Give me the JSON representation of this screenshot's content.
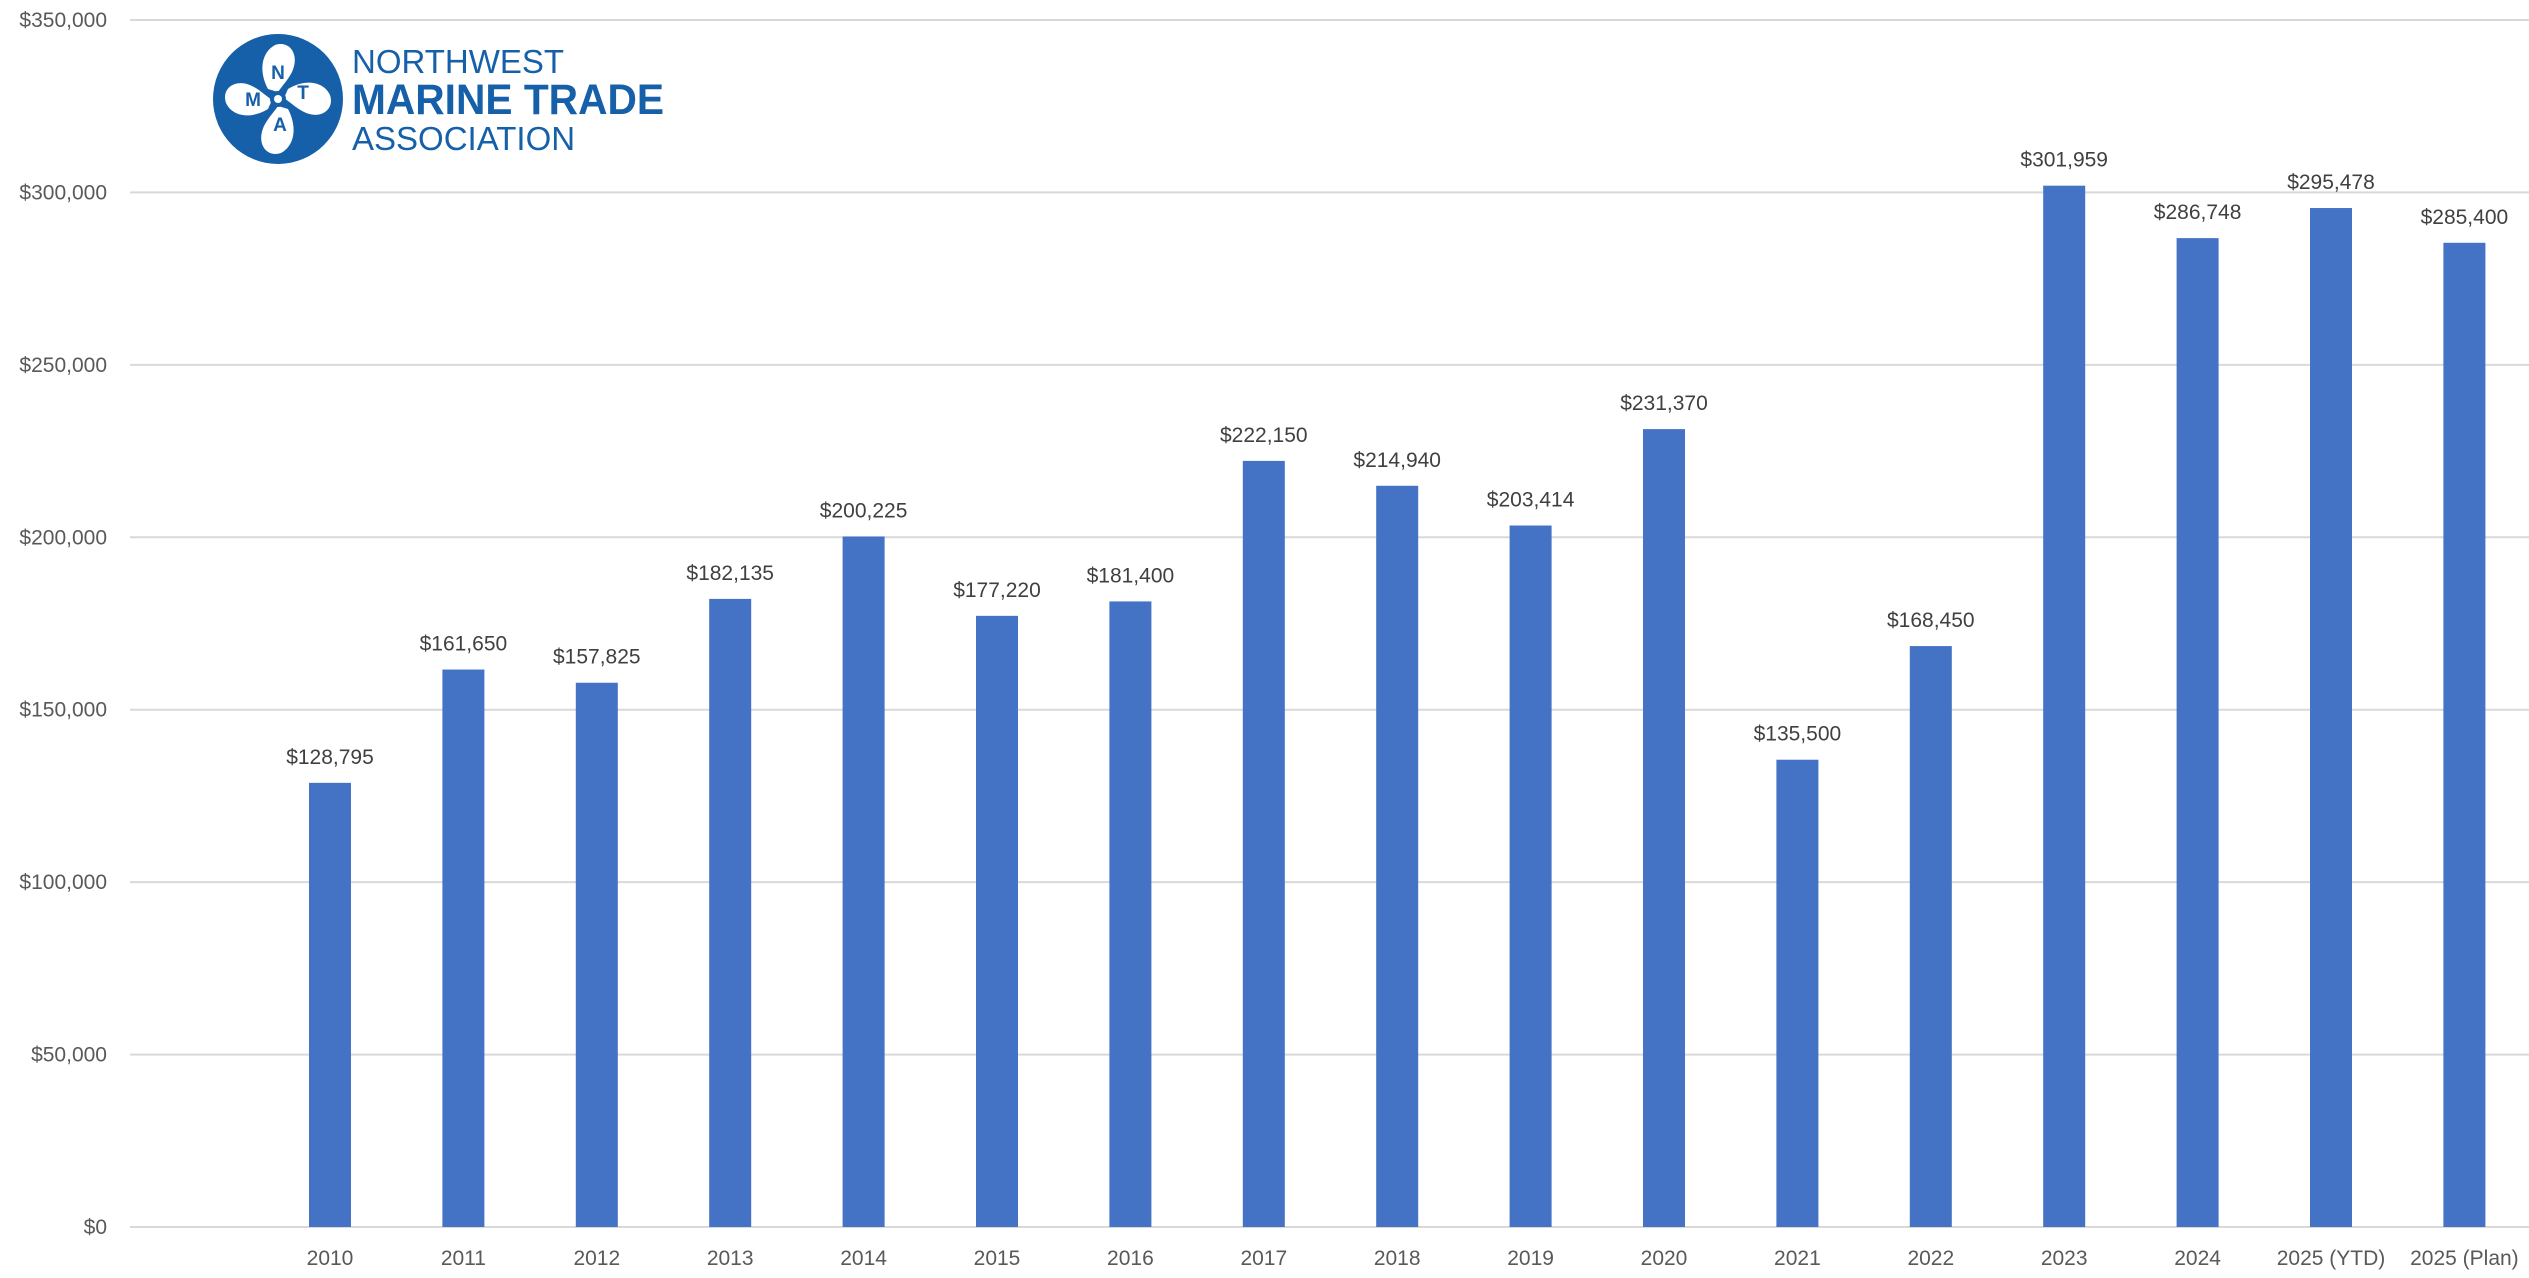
{
  "logo": {
    "lines": [
      "NORTHWEST",
      "MARINE TRADE",
      "ASSOCIATION"
    ],
    "letters": [
      "N",
      "M",
      "T",
      "A"
    ],
    "color": "#1560a8"
  },
  "colors": {
    "bar": "#4472c4",
    "grid": "#d9d9d9",
    "axis_text": "#595959",
    "label_text": "#404040"
  },
  "chart_data": {
    "type": "bar",
    "title": "",
    "xlabel": "",
    "ylabel": "",
    "categories": [
      "2010",
      "2011",
      "2012",
      "2013",
      "2014",
      "2015",
      "2016",
      "2017",
      "2018",
      "2019",
      "2020",
      "2021",
      "2022",
      "2023",
      "2024",
      "2025 (YTD)",
      "2025 (Plan)"
    ],
    "values": [
      128795,
      161650,
      157825,
      182135,
      200225,
      177220,
      181400,
      222150,
      214940,
      203414,
      231370,
      135500,
      168450,
      301959,
      286748,
      295478,
      285400
    ],
    "value_labels": [
      "$128,795",
      "$161,650",
      "$157,825",
      "$182,135",
      "$200,225",
      "$177,220",
      "$181,400",
      "$222,150",
      "$214,940",
      "$203,414",
      "$231,370",
      "$135,500",
      "$168,450",
      "$301,959",
      "$286,748",
      "$295,478",
      "$285,400"
    ],
    "y_ticks": [
      0,
      50000,
      100000,
      150000,
      200000,
      250000,
      300000,
      350000
    ],
    "y_tick_labels": [
      "$0",
      "$50,000",
      "$100,000",
      "$150,000",
      "$200,000",
      "$250,000",
      "$300,000",
      "$350,000"
    ],
    "ylim": [
      0,
      350000
    ],
    "grid": true,
    "legend": "none"
  }
}
